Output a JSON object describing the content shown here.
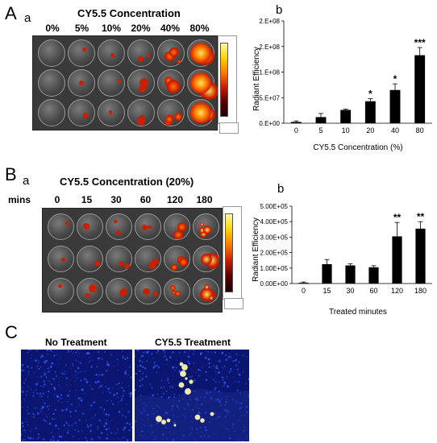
{
  "panel_A": {
    "letter": "A",
    "sub_a": "a",
    "sub_b": "b",
    "title": "CY5.5 Concentration",
    "columns": [
      "0%",
      "5%",
      "10%",
      "20%",
      "40%",
      "80%"
    ]
  },
  "panel_B": {
    "letter": "B",
    "sub_a": "a",
    "sub_b": "b",
    "title": "CY5.5 Concentration (20%)",
    "row_label": "mins",
    "columns": [
      "0",
      "15",
      "30",
      "60",
      "120",
      "180"
    ]
  },
  "panel_C": {
    "letter": "C",
    "left_title": "No Treatment",
    "right_title": "CY5.5 Treatment"
  },
  "colors": {
    "bar": "#000000",
    "plate": "#3a3a3a",
    "micro_bg": "#0a1670"
  },
  "chart_data": [
    {
      "type": "bar",
      "categories": [
        "0",
        "5",
        "10",
        "20",
        "40",
        "80"
      ],
      "values": [
        2500000.0,
        12000000.0,
        26000000.0,
        43000000.0,
        65000000.0,
        133000000.0
      ],
      "errors": [
        2000000.0,
        7000000.0,
        1500000.0,
        5000000.0,
        12000000.0,
        15000000.0
      ],
      "significance": [
        "",
        "",
        "",
        "*",
        "*",
        "***"
      ],
      "ytick_labels": [
        "0.E+00",
        "5.E+07",
        "1.E+08",
        "2.E+08",
        "2.E+08"
      ],
      "ylim": [
        0,
        200000000.0
      ],
      "xlabel": "CY5.5 Concentration (%)",
      "ylabel": "Radiant Efficiency"
    },
    {
      "type": "bar",
      "categories": [
        "0",
        "15",
        "30",
        "60",
        "120",
        "180"
      ],
      "values": [
        5000.0,
        125000.0,
        117000.0,
        105000.0,
        305000.0,
        355000.0
      ],
      "errors": [
        5000.0,
        30000.0,
        10000.0,
        10000.0,
        90000.0,
        45000.0
      ],
      "significance": [
        "",
        "",
        "",
        "",
        "**",
        "**"
      ],
      "ytick_labels": [
        "0.00E+00",
        "1.00E+05",
        "2.00E+05",
        "3.00E+05",
        "4.00E+05",
        "5.00E+05"
      ],
      "ylim": [
        0,
        500000.0
      ],
      "xlabel": "Treated minutes",
      "ylabel": "Radiant Efficiency"
    }
  ]
}
